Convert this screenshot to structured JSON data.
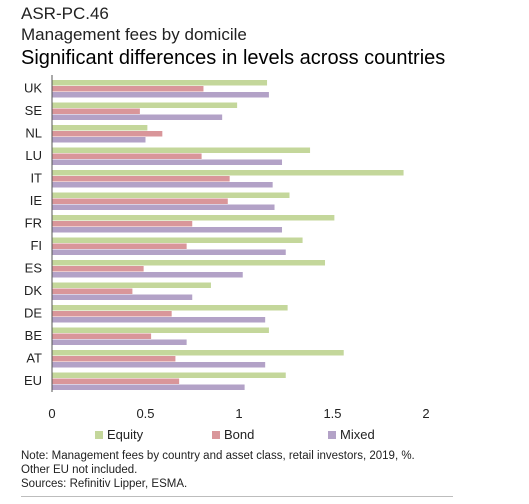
{
  "header": {
    "code": "ASR-PC.46",
    "subtitle": "Management fees by domicile",
    "headline": "Significant differences in levels across countries"
  },
  "notes": {
    "line1": "Note: Management fees by country and asset class, retail investors, 2019, %.",
    "line2": "Other EU not included.",
    "line3": "Sources: Refinitiv Lipper, ESMA."
  },
  "colors": {
    "Equity": "#c4d79b",
    "Bond": "#d9969a",
    "Mixed": "#b3a2c7"
  },
  "chart_data": {
    "type": "bar",
    "orientation": "horizontal",
    "categories": [
      "UK",
      "SE",
      "NL",
      "LU",
      "IT",
      "IE",
      "FR",
      "FI",
      "ES",
      "DK",
      "DE",
      "BE",
      "AT",
      "EU"
    ],
    "series": [
      {
        "name": "Equity",
        "values": [
          1.15,
          0.99,
          0.51,
          1.38,
          1.88,
          1.27,
          1.51,
          1.34,
          1.46,
          0.85,
          1.26,
          1.16,
          1.56,
          1.25
        ]
      },
      {
        "name": "Bond",
        "values": [
          0.81,
          0.47,
          0.59,
          0.8,
          0.95,
          0.94,
          0.75,
          0.72,
          0.49,
          0.43,
          0.64,
          0.53,
          0.66,
          0.68
        ]
      },
      {
        "name": "Mixed",
        "values": [
          1.16,
          0.91,
          0.5,
          1.23,
          1.18,
          1.19,
          1.23,
          1.25,
          1.02,
          0.75,
          1.14,
          0.72,
          1.14,
          1.03
        ]
      }
    ],
    "xticks": [
      0,
      0.5,
      1,
      1.5,
      2
    ],
    "xtick_labels": [
      "0",
      "0.5",
      "1",
      "1.5",
      "2"
    ],
    "xlim": [
      0,
      2
    ],
    "grid": false,
    "legend_position": "bottom"
  }
}
